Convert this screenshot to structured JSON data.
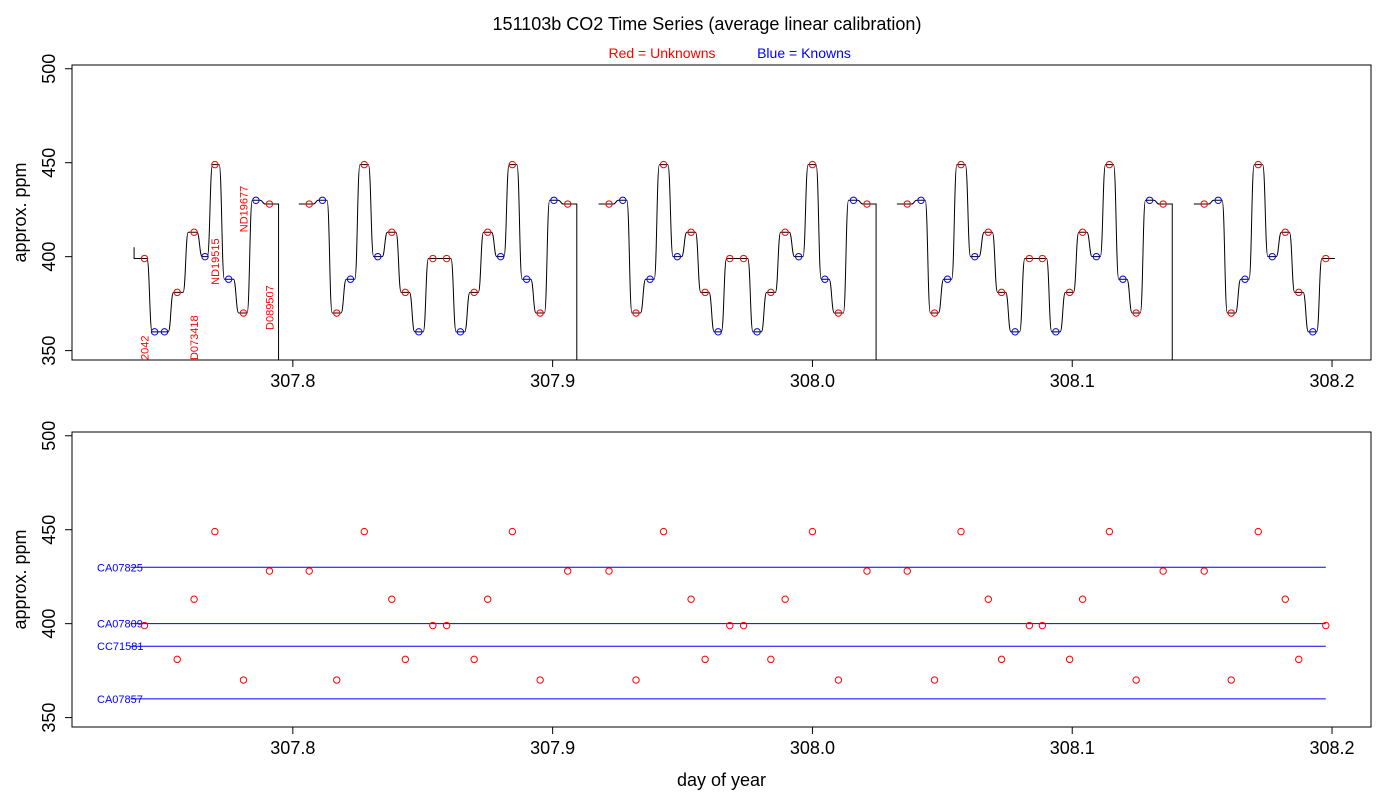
{
  "header": {
    "title": "151103b   CO2 Time Series (average linear calibration)",
    "legend_red": "Red = Unknowns",
    "legend_blue": "Blue = Knowns"
  },
  "colors": {
    "unknown": "#ff0000",
    "known": "#0000ff",
    "line": "#000000"
  },
  "chart_data": [
    {
      "type": "line",
      "panel": "top",
      "title": "151103b   CO2 Time Series (average linear calibration)",
      "xlabel": "",
      "ylabel": "approx. ppm",
      "xlim": [
        307.715,
        308.215
      ],
      "ylim": [
        345,
        502
      ],
      "xticks": [
        307.8,
        307.9,
        308.0,
        308.1,
        308.2
      ],
      "xtick_labels": [
        "307.8",
        "307.9",
        "308.0",
        "308.1",
        "308.2"
      ],
      "yticks": [
        350,
        400,
        450,
        500
      ],
      "ytick_labels": [
        "350",
        "400",
        "450",
        "500"
      ],
      "grid": false,
      "series": [
        {
          "name": "Unknowns",
          "color": "red",
          "points": [
            [
              307.7429,
              399
            ],
            [
              307.7555,
              381
            ],
            [
              307.762,
              413
            ],
            [
              307.77,
              449
            ],
            [
              307.781,
              370
            ],
            [
              307.791,
              428
            ],
            [
              307.8063,
              428
            ],
            [
              307.8169,
              370
            ],
            [
              307.8275,
              449
            ],
            [
              307.8381,
              413
            ],
            [
              307.8433,
              381
            ],
            [
              307.8539,
              399
            ],
            [
              307.8592,
              399
            ],
            [
              307.8698,
              381
            ],
            [
              307.875,
              413
            ],
            [
              307.8845,
              449
            ],
            [
              307.8952,
              370
            ],
            [
              307.9058,
              428
            ],
            [
              307.9217,
              428
            ],
            [
              307.9321,
              370
            ],
            [
              307.9427,
              449
            ],
            [
              307.9533,
              413
            ],
            [
              307.9587,
              381
            ],
            [
              307.9682,
              399
            ],
            [
              307.9735,
              399
            ],
            [
              307.984,
              381
            ],
            [
              307.9895,
              413
            ],
            [
              308.0,
              449
            ],
            [
              308.01,
              370
            ],
            [
              308.021,
              428
            ],
            [
              308.0365,
              428
            ],
            [
              308.047,
              370
            ],
            [
              308.0572,
              449
            ],
            [
              308.0677,
              413
            ],
            [
              308.0728,
              381
            ],
            [
              308.0835,
              399
            ],
            [
              308.0885,
              399
            ],
            [
              308.099,
              381
            ],
            [
              308.104,
              413
            ],
            [
              308.1143,
              449
            ],
            [
              308.1246,
              370
            ],
            [
              308.135,
              428
            ],
            [
              308.1508,
              428
            ],
            [
              308.1612,
              370
            ],
            [
              308.1716,
              449
            ],
            [
              308.182,
              413
            ],
            [
              308.1872,
              381
            ],
            [
              308.1976,
              399
            ]
          ]
        },
        {
          "name": "Knowns",
          "color": "blue",
          "points": [
            [
              307.7468,
              360
            ],
            [
              307.7506,
              360
            ],
            [
              307.7662,
              400
            ],
            [
              307.7753,
              388
            ],
            [
              307.7858,
              430
            ],
            [
              307.8114,
              430
            ],
            [
              307.8222,
              388
            ],
            [
              307.8327,
              400
            ],
            [
              307.8485,
              360
            ],
            [
              307.8645,
              360
            ],
            [
              307.88,
              400
            ],
            [
              307.89,
              388
            ],
            [
              307.9005,
              430
            ],
            [
              307.927,
              430
            ],
            [
              307.9375,
              388
            ],
            [
              307.948,
              400
            ],
            [
              307.9637,
              360
            ],
            [
              307.9787,
              360
            ],
            [
              307.9947,
              400
            ],
            [
              308.0048,
              388
            ],
            [
              308.0158,
              430
            ],
            [
              308.0418,
              430
            ],
            [
              308.052,
              388
            ],
            [
              308.0625,
              400
            ],
            [
              308.078,
              360
            ],
            [
              308.0937,
              360
            ],
            [
              308.1093,
              400
            ],
            [
              308.1195,
              388
            ],
            [
              308.1298,
              430
            ],
            [
              308.1562,
              430
            ],
            [
              308.1665,
              388
            ],
            [
              308.177,
              400
            ],
            [
              308.1926,
              360
            ]
          ]
        }
      ],
      "annotations": [
        {
          "text": "2042",
          "x": 307.7429,
          "y": 345,
          "color": "red"
        },
        {
          "text": "D073418",
          "x": 307.762,
          "y": 345,
          "color": "red"
        },
        {
          "text": "ND19515",
          "x": 307.77,
          "y": 385,
          "color": "red"
        },
        {
          "text": "ND19677",
          "x": 307.781,
          "y": 413,
          "color": "red"
        },
        {
          "text": "D089507",
          "x": 307.791,
          "y": 361,
          "color": "red"
        }
      ]
    },
    {
      "type": "scatter",
      "panel": "bottom",
      "xlabel": "day of year",
      "ylabel": "approx. ppm",
      "xlim": [
        307.715,
        308.215
      ],
      "ylim": [
        345,
        502
      ],
      "xticks": [
        307.8,
        307.9,
        308.0,
        308.1,
        308.2
      ],
      "xtick_labels": [
        "307.8",
        "307.9",
        "308.0",
        "308.1",
        "308.2"
      ],
      "yticks": [
        350,
        400,
        450,
        500
      ],
      "ytick_labels": [
        "350",
        "400",
        "450",
        "500"
      ],
      "grid": false,
      "series": [
        {
          "name": "Unknowns",
          "color": "red",
          "points": [
            [
              307.7429,
              399
            ],
            [
              307.7555,
              381
            ],
            [
              307.762,
              413
            ],
            [
              307.77,
              449
            ],
            [
              307.781,
              370
            ],
            [
              307.791,
              428
            ],
            [
              307.8063,
              428
            ],
            [
              307.8169,
              370
            ],
            [
              307.8275,
              449
            ],
            [
              307.8381,
              413
            ],
            [
              307.8433,
              381
            ],
            [
              307.8539,
              399
            ],
            [
              307.8592,
              399
            ],
            [
              307.8698,
              381
            ],
            [
              307.875,
              413
            ],
            [
              307.8845,
              449
            ],
            [
              307.8952,
              370
            ],
            [
              307.9058,
              428
            ],
            [
              307.9217,
              428
            ],
            [
              307.9321,
              370
            ],
            [
              307.9427,
              449
            ],
            [
              307.9533,
              413
            ],
            [
              307.9587,
              381
            ],
            [
              307.9682,
              399
            ],
            [
              307.9735,
              399
            ],
            [
              307.984,
              381
            ],
            [
              307.9895,
              413
            ],
            [
              308.0,
              449
            ],
            [
              308.01,
              370
            ],
            [
              308.021,
              428
            ],
            [
              308.0365,
              428
            ],
            [
              308.047,
              370
            ],
            [
              308.0572,
              449
            ],
            [
              308.0677,
              413
            ],
            [
              308.0728,
              381
            ],
            [
              308.0835,
              399
            ],
            [
              308.0885,
              399
            ],
            [
              308.099,
              381
            ],
            [
              308.104,
              413
            ],
            [
              308.1143,
              449
            ],
            [
              308.1246,
              370
            ],
            [
              308.135,
              428
            ],
            [
              308.1508,
              428
            ],
            [
              308.1612,
              370
            ],
            [
              308.1716,
              449
            ],
            [
              308.182,
              413
            ],
            [
              308.1872,
              381
            ],
            [
              308.1976,
              399
            ]
          ]
        }
      ],
      "reference_lines": [
        {
          "name": "CA07825",
          "y": 430,
          "x_start": 307.7375,
          "x_end": 308.1976,
          "color": "blue"
        },
        {
          "name": "CA07809",
          "y": 400,
          "x_start": 307.7375,
          "x_end": 308.1976,
          "color": "blue"
        },
        {
          "name": "CC71581",
          "y": 388,
          "x_start": 307.7375,
          "x_end": 308.1976,
          "color": "blue"
        },
        {
          "name": "CA07857",
          "y": 360,
          "x_start": 307.7375,
          "x_end": 308.1976,
          "color": "blue"
        }
      ]
    }
  ]
}
